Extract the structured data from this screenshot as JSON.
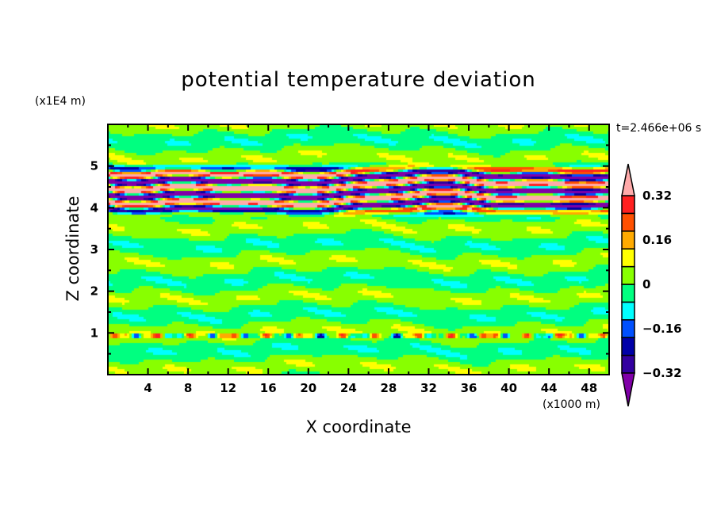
{
  "chart_data": {
    "type": "heatmap",
    "title": "potential temperature deviation",
    "xlabel": "X coordinate",
    "ylabel": "Z coordinate",
    "x_unit": "(x1000 m)",
    "y_unit": "(x1E4 m)",
    "time_label": "t=2.466e+06 s",
    "xlim": [
      0,
      50
    ],
    "ylim": [
      0,
      6
    ],
    "xticks": [
      4,
      8,
      12,
      16,
      20,
      24,
      28,
      32,
      36,
      40,
      44,
      48
    ],
    "yticks": [
      1,
      2,
      3,
      4,
      5
    ],
    "contour_levels": [
      -0.4,
      -0.32,
      -0.24,
      -0.16,
      -0.08,
      0,
      0.08,
      0.16,
      0.24,
      0.32,
      0.4
    ],
    "colorbar_labels": [
      "0.32",
      "0.16",
      "0",
      "-0.16",
      "-0.32"
    ],
    "colorbar_label_values": [
      0.32,
      0.16,
      0,
      -0.16,
      -0.32
    ],
    "colors": [
      "#8000a8",
      "#3300a0",
      "#0000a8",
      "#0050ff",
      "#00ffff",
      "#00ff80",
      "#88ff00",
      "#ffff00",
      "#ffaa00",
      "#ff5000",
      "#ff2020",
      "#ffaaaa"
    ],
    "features": "strong layered anomalies between z=3.5 and z=5.3 (x1E4 m); weak +/-0.08 bands elsewhere; thin perturbed layer near z=1"
  }
}
